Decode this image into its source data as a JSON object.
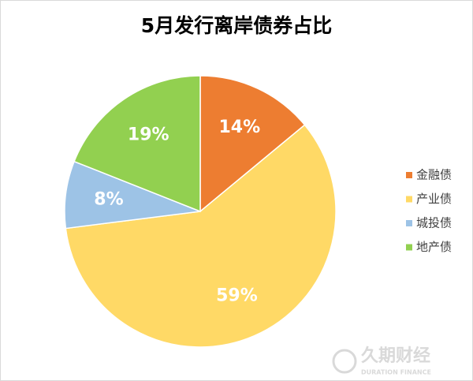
{
  "chart_data": {
    "type": "pie",
    "title": "5月发行离岸债券占比",
    "categories": [
      "金融债",
      "产业债",
      "城投债",
      "地产债"
    ],
    "values": [
      14,
      59,
      8,
      19
    ],
    "value_labels": [
      "14%",
      "59%",
      "8%",
      "19%"
    ],
    "colors": [
      "#ED7D31",
      "#FFD966",
      "#9DC3E6",
      "#92D050"
    ],
    "legend": "right"
  },
  "watermark": {
    "name": "久期财经",
    "tagline": "DURATION FINANCE"
  }
}
